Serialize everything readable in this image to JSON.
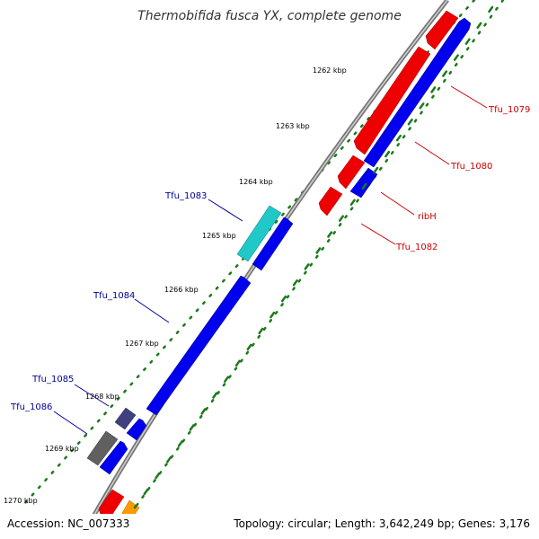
{
  "title": "Thermobifida fusca YX, complete genome",
  "footer": {
    "accession": "Accession: NC_007333",
    "info": "Topology: circular; Length: 3,642,249 bp; Genes: 3,176"
  },
  "ticks": [
    "1262 kbp",
    "1263 kbp",
    "1264 kbp",
    "1265 kbp",
    "1266 kbp",
    "1267 kbp",
    "1268 kbp",
    "1269 kbp",
    "1270 kbp"
  ],
  "gene_labels": {
    "tfu_1079": "Tfu_1079",
    "tfu_1080": "Tfu_1080",
    "ribH": "ribH",
    "tfu_1082": "Tfu_1082",
    "tfu_1083": "Tfu_1083",
    "tfu_1084": "Tfu_1084",
    "tfu_1085": "Tfu_1085",
    "tfu_1086": "Tfu_1086"
  },
  "colors": {
    "forward_strand": "#0000ee",
    "reverse_strand": "#ee0000",
    "forward_label": "#000099",
    "reverse_label": "#cc0000",
    "cyan_feature": "#20c8c8",
    "slate_feature": "#404080",
    "gray_feature": "#606060",
    "orange_feature": "#ff9900",
    "backbone": "#888888",
    "tick_dots": "#1a7a1a"
  }
}
